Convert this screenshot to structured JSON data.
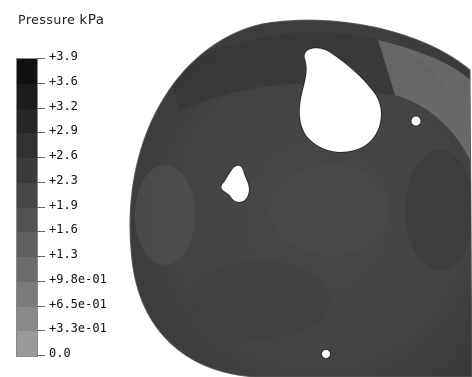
{
  "header": {
    "title": "Pressure",
    "unit": "kPa"
  },
  "legend": {
    "labels": [
      "+3.9",
      "+3.6",
      "+3.2",
      "+2.9",
      "+2.6",
      "+2.3",
      "+1.9",
      "+1.6",
      "+1.3",
      "+9.8e-01",
      "+6.5e-01",
      "+3.3e-01",
      "0.0"
    ],
    "colors": [
      "#111111",
      "#1c1c1c",
      "#262626",
      "#313131",
      "#3b3b3b",
      "#464646",
      "#525252",
      "#5f5f5f",
      "#6d6d6d",
      "#7b7b7b",
      "#898989",
      "#999999",
      "#a9a9a9"
    ]
  },
  "contour": {
    "background_color": "#4a4a4a",
    "shadow_color": "#2f2f2f",
    "highlight_color": "#9a9a9a"
  }
}
